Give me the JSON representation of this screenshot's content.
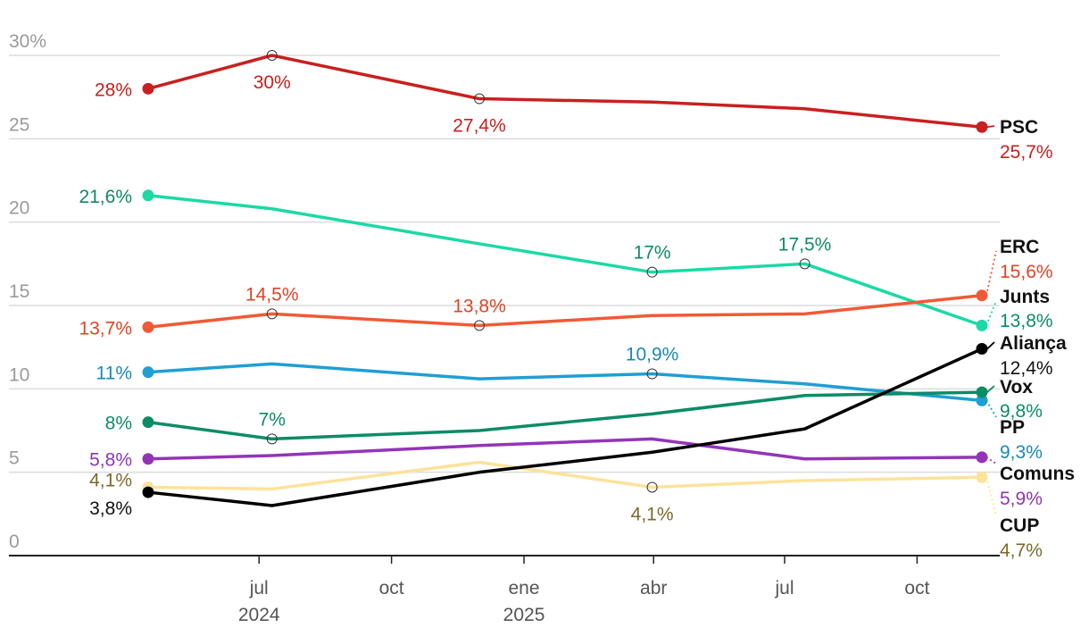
{
  "chart_data": {
    "type": "line",
    "title": "",
    "xlabel": "",
    "ylabel": "",
    "ylim": [
      0,
      30
    ],
    "yticks": [
      "0",
      "5",
      "10",
      "15",
      "20",
      "25",
      "30%"
    ],
    "grid": true,
    "x_dates": [
      "2024-04-15",
      "2024-07-10",
      "2024-12-01",
      "2025-03-31",
      "2025-07-15",
      "2025-11-15"
    ],
    "xticks": [
      {
        "date": "2024-07-01",
        "label": "jul",
        "year": "2024"
      },
      {
        "date": "2024-10-01",
        "label": "oct",
        "year": ""
      },
      {
        "date": "2025-01-01",
        "label": "ene",
        "year": "2025"
      },
      {
        "date": "2025-04-01",
        "label": "abr",
        "year": ""
      },
      {
        "date": "2025-07-01",
        "label": "jul",
        "year": ""
      },
      {
        "date": "2025-10-01",
        "label": "oct",
        "year": ""
      }
    ],
    "series": [
      {
        "name": "PSC",
        "color": "#c8201f",
        "label_color": "#c8201f",
        "values": [
          28,
          30,
          27.4,
          27.2,
          26.8,
          25.7
        ],
        "end_value": "25,7%",
        "labels": [
          {
            "i": 0,
            "text": "28%",
            "pos": "left"
          },
          {
            "i": 1,
            "text": "30%",
            "pos": "below"
          },
          {
            "i": 2,
            "text": "27,4%",
            "pos": "below"
          }
        ]
      },
      {
        "name": "Junts",
        "color": "#1cd9a5",
        "label_color": "#0e8a66",
        "values": [
          21.6,
          20.8,
          18.7,
          17,
          17.5,
          13.8
        ],
        "end_value": "13,8%",
        "labels": [
          {
            "i": 0,
            "text": "21,6%",
            "pos": "left"
          },
          {
            "i": 3,
            "text": "17%",
            "pos": "above"
          },
          {
            "i": 4,
            "text": "17,5%",
            "pos": "above"
          }
        ]
      },
      {
        "name": "ERC",
        "color": "#f05a35",
        "label_color": "#de4426",
        "values": [
          13.7,
          14.5,
          13.8,
          14.4,
          14.5,
          15.6
        ],
        "end_value": "15,6%",
        "labels": [
          {
            "i": 0,
            "text": "13,7%",
            "pos": "left"
          },
          {
            "i": 1,
            "text": "14,5%",
            "pos": "above"
          },
          {
            "i": 2,
            "text": "13,8%",
            "pos": "above"
          }
        ]
      },
      {
        "name": "PP",
        "color": "#1f9fd2",
        "label_color": "#1a88b5",
        "values": [
          11,
          11.5,
          10.6,
          10.9,
          10.3,
          9.3
        ],
        "end_value": "9,3%",
        "labels": [
          {
            "i": 0,
            "text": "11%",
            "pos": "left"
          },
          {
            "i": 3,
            "text": "10,9%",
            "pos": "above"
          }
        ]
      },
      {
        "name": "Vox",
        "color": "#0b8c67",
        "label_color": "#0b8c67",
        "values": [
          8,
          7,
          7.5,
          8.5,
          9.6,
          9.8
        ],
        "end_value": "9,8%",
        "labels": [
          {
            "i": 0,
            "text": "8%",
            "pos": "left"
          },
          {
            "i": 1,
            "text": "7%",
            "pos": "above"
          }
        ]
      },
      {
        "name": "Comuns",
        "color": "#9334b8",
        "label_color": "#8e35b2",
        "values": [
          5.8,
          6,
          6.6,
          7,
          5.8,
          5.9
        ],
        "end_value": "5,9%",
        "labels": [
          {
            "i": 0,
            "text": "5,8%",
            "pos": "left"
          }
        ]
      },
      {
        "name": "CUP",
        "color": "#fce39b",
        "label_color": "#7a6a2a",
        "values": [
          4.1,
          4,
          5.6,
          4.1,
          4.5,
          4.7
        ],
        "end_value": "4,7%",
        "labels": [
          {
            "i": 0,
            "text": "4,1%",
            "pos": "left-up"
          },
          {
            "i": 3,
            "text": "4,1%",
            "pos": "below"
          }
        ]
      },
      {
        "name": "Aliança",
        "color": "#000000",
        "label_color": "#111111",
        "values": [
          3.8,
          3,
          5,
          6.2,
          7.6,
          12.4
        ],
        "end_value": "12,4%",
        "labels": [
          {
            "i": 0,
            "text": "3,8%",
            "pos": "left-down"
          }
        ]
      }
    ]
  }
}
